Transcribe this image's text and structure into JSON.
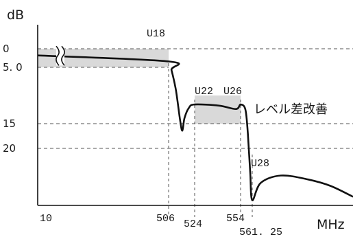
{
  "chart_data": {
    "type": "line",
    "ylabel": "dB",
    "xlabel": "MHz",
    "yticks": [
      {
        "value": 0,
        "label": "0"
      },
      {
        "value": 5.0,
        "label": "5. 0"
      },
      {
        "value": 15,
        "label": "15"
      },
      {
        "value": 20,
        "label": "20"
      }
    ],
    "xticks": [
      {
        "value": 10,
        "label": "10"
      },
      {
        "value": 506,
        "label": "506"
      },
      {
        "value": 524,
        "label": "524"
      },
      {
        "value": 554,
        "label": "554"
      },
      {
        "value": 561.25,
        "label": "561. 25"
      }
    ],
    "annotations": [
      {
        "text": "U18",
        "x": 506
      },
      {
        "text": "U22",
        "x": 524
      },
      {
        "text": "U26",
        "x": 554
      },
      {
        "text": "U28",
        "x": 561.25
      },
      {
        "text": "レベル差改善"
      }
    ],
    "axis_break": "x-axis between 10 and 506",
    "shaded_regions": [
      {
        "x": [
          10,
          506
        ],
        "y": [
          0,
          5.0
        ]
      },
      {
        "x": [
          524,
          554
        ],
        "y": [
          10,
          15
        ]
      }
    ],
    "series": [
      {
        "values_description": "attenuation curve (dB, inverted axis)",
        "points": [
          [
            10,
            1.8
          ],
          [
            506,
            3.4
          ],
          [
            508,
            5.5
          ],
          [
            511,
            9
          ],
          [
            514,
            14.5
          ],
          [
            515.5,
            16.4
          ],
          [
            517,
            14
          ],
          [
            520,
            12.2
          ],
          [
            524,
            11.6
          ],
          [
            540,
            11.8
          ],
          [
            551,
            12.4
          ],
          [
            554,
            11.6
          ],
          [
            557,
            12.5
          ],
          [
            558.5,
            17
          ],
          [
            560,
            25
          ],
          [
            561.25,
            30.5
          ],
          [
            565,
            27
          ],
          [
            574,
            25.5
          ],
          [
            586,
            26.3
          ],
          [
            596,
            27.6
          ],
          [
            606,
            29.8
          ]
        ]
      }
    ],
    "colors": {
      "line": "#111111",
      "shade": "#d9d9d9",
      "guides": "#555555"
    }
  }
}
